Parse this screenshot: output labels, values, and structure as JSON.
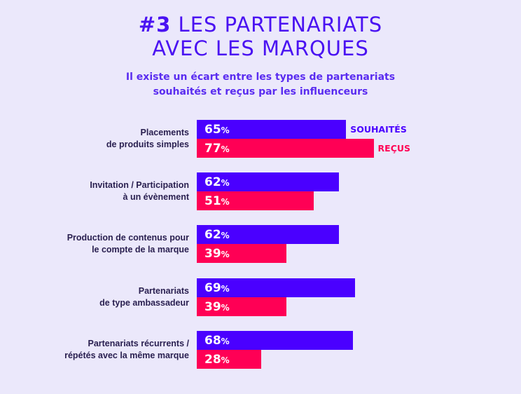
{
  "chart_data": {
    "type": "bar",
    "orientation": "horizontal",
    "title": "#3 LES PARTENARIATS AVEC LES MARQUES",
    "title_prefix": "#3",
    "title_line1": "LES PARTENARIATS",
    "title_line2": "AVEC LES MARQUES",
    "subtitle_line1": "Il existe un écart entre les types de partenariats",
    "subtitle_line2": "souhaités et reçus par les influenceurs",
    "categories": [
      [
        "Placements",
        "de produits simples"
      ],
      [
        "Invitation / Participation",
        "à un évènement"
      ],
      [
        "Production de contenus pour",
        "le compte de la marque"
      ],
      [
        "Partenariats",
        "de type ambassadeur"
      ],
      [
        "Partenariats récurrents /",
        "répétés avec la même marque"
      ]
    ],
    "unit": "%",
    "series": [
      {
        "name": "SOUHAITÉS",
        "color": "#4a00ff",
        "values": [
          65,
          62,
          62,
          69,
          68
        ]
      },
      {
        "name": "REÇUS",
        "color": "#ff0055",
        "values": [
          77,
          51,
          39,
          39,
          28
        ]
      }
    ],
    "xlim": [
      0,
      100
    ],
    "grid": false,
    "legend": "inline-right-of-first-row"
  }
}
